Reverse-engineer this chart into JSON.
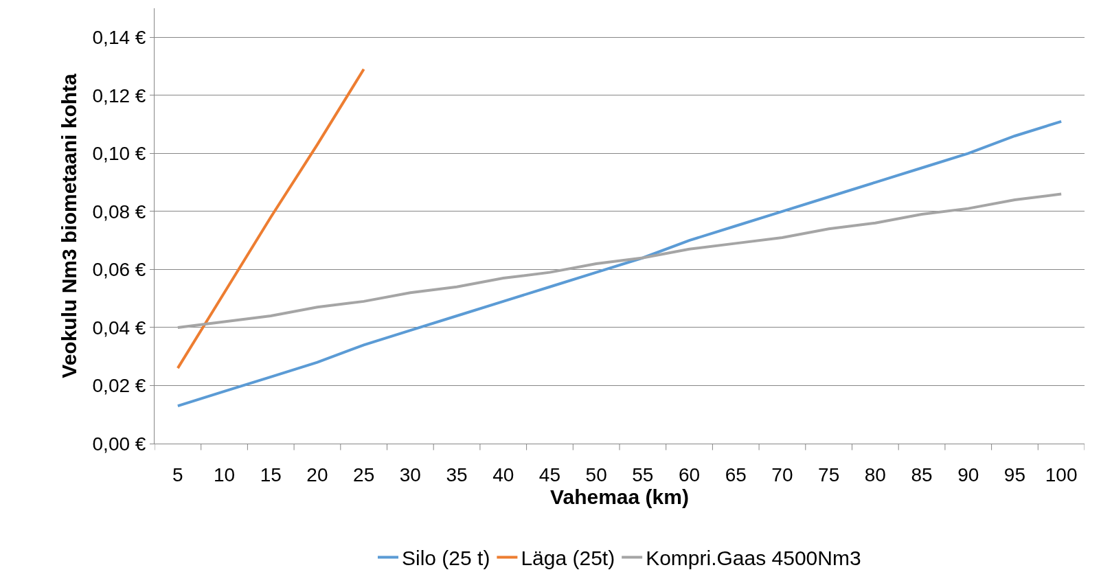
{
  "chart_data": {
    "type": "line",
    "xlabel": "Vahemaa (km)",
    "ylabel": "Veokulu Nm3 biometaani kohta",
    "categories": [
      "5",
      "10",
      "15",
      "20",
      "25",
      "30",
      "35",
      "40",
      "45",
      "50",
      "55",
      "60",
      "65",
      "70",
      "75",
      "80",
      "85",
      "90",
      "95",
      "100"
    ],
    "series": [
      {
        "name": "Silo (25 t)",
        "color": "#5b9bd5",
        "values": [
          0.013,
          0.018,
          0.023,
          0.028,
          0.034,
          0.039,
          0.044,
          0.049,
          0.054,
          0.059,
          0.064,
          0.07,
          0.075,
          0.08,
          0.085,
          0.09,
          0.095,
          0.1,
          0.106,
          0.111
        ]
      },
      {
        "name": "Läga (25t)",
        "color": "#ed7d31",
        "values": [
          0.026,
          0.052,
          0.078,
          0.103,
          0.129,
          null,
          null,
          null,
          null,
          null,
          null,
          null,
          null,
          null,
          null,
          null,
          null,
          null,
          null,
          null
        ]
      },
      {
        "name": "Kompri.Gaas 4500Nm3",
        "color": "#a5a5a5",
        "values": [
          0.04,
          0.042,
          0.044,
          0.047,
          0.049,
          0.052,
          0.054,
          0.057,
          0.059,
          0.062,
          0.064,
          0.067,
          0.069,
          0.071,
          0.074,
          0.076,
          0.079,
          0.081,
          0.084,
          0.086
        ]
      }
    ],
    "ylim": [
      0,
      0.15
    ],
    "yticks": [
      {
        "value": 0,
        "label": "0,00 €"
      },
      {
        "value": 0.02,
        "label": "0,02 €"
      },
      {
        "value": 0.04,
        "label": "0,04 €"
      },
      {
        "value": 0.06,
        "label": "0,06 €"
      },
      {
        "value": 0.08,
        "label": "0,08 €"
      },
      {
        "value": 0.1,
        "label": "0,10 €"
      },
      {
        "value": 0.12,
        "label": "0,12 €"
      },
      {
        "value": 0.14,
        "label": "0,14 €"
      }
    ],
    "grid": "y",
    "legend": "bottom",
    "marker": "none",
    "line_style": "solid"
  }
}
